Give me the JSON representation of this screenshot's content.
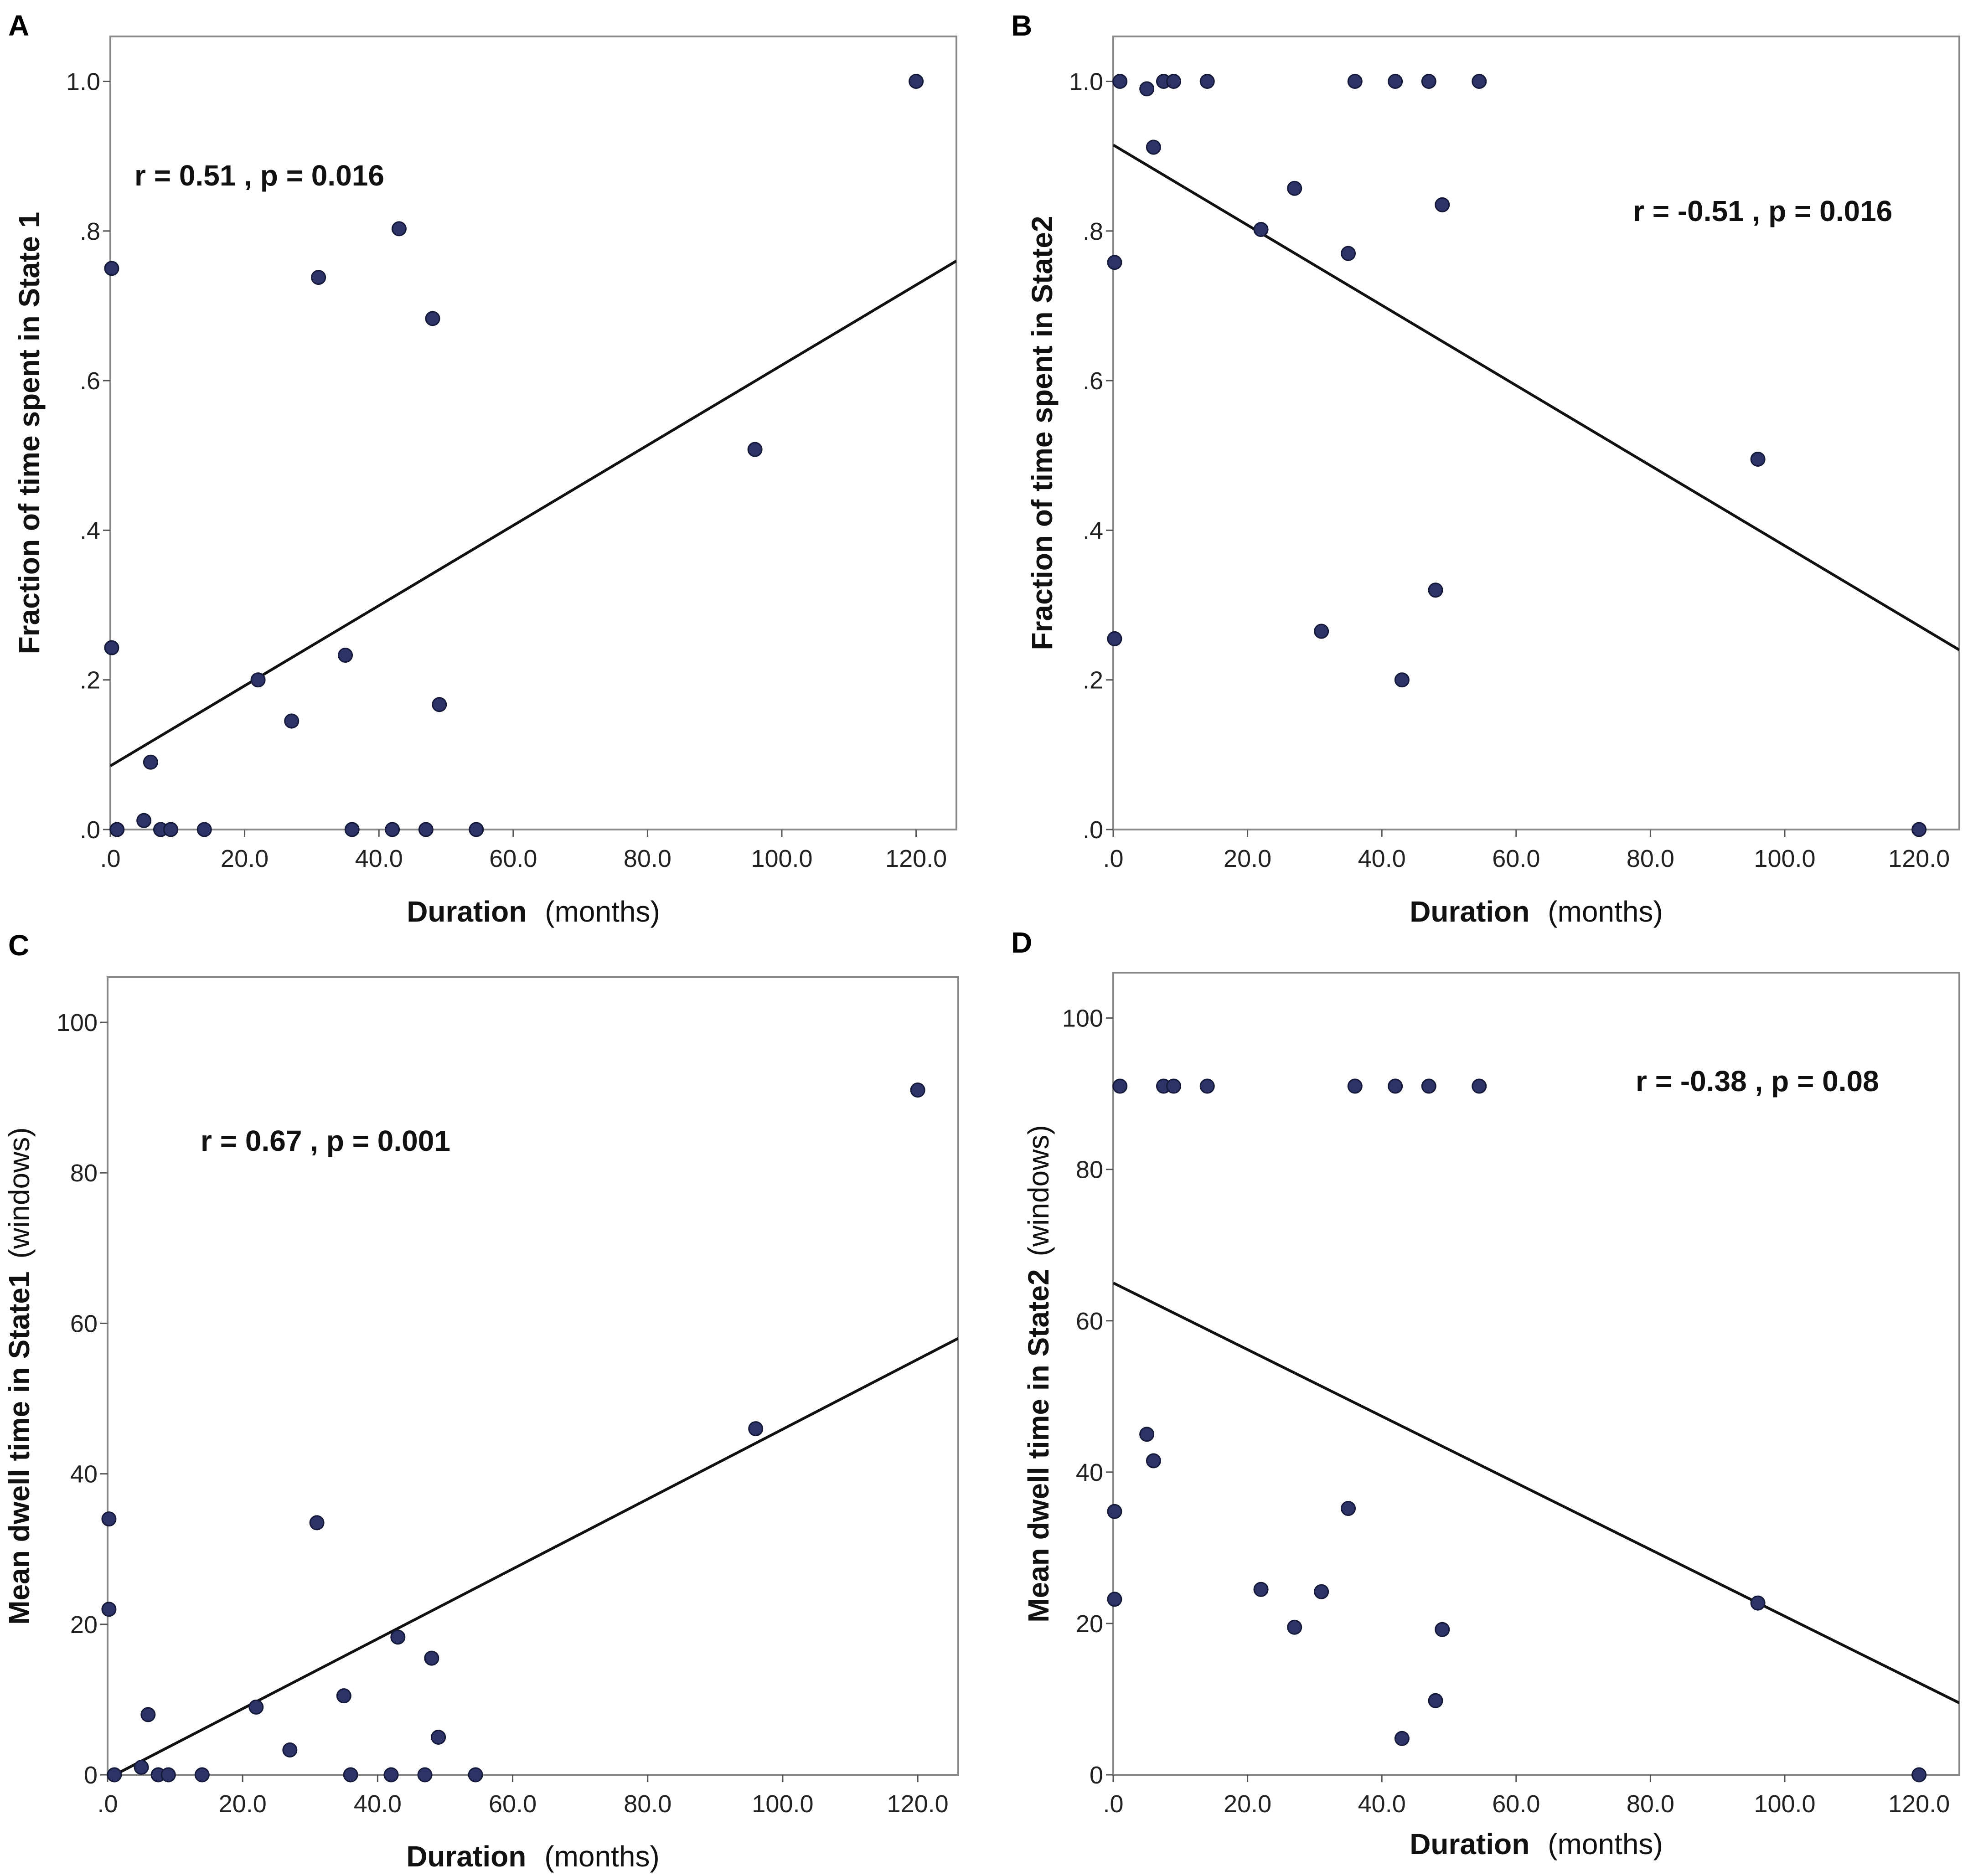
{
  "colors": {
    "points": "#2d3366",
    "point_edge": "#15193a",
    "line": "#111111",
    "frame": "#888888",
    "text": "#111111"
  },
  "chart_data": [
    {
      "panel": "A",
      "type": "scatter",
      "xlabel": {
        "bold": "Duration",
        "plain": "(months)"
      },
      "ylabel": {
        "bold": "Fraction of time spent in State 1",
        "plain": ""
      },
      "xlim": [
        0,
        126
      ],
      "ylim": [
        0,
        1.06
      ],
      "x_ticks": [
        0,
        20,
        40,
        60,
        80,
        100,
        120
      ],
      "x_tick_labels": [
        ".0",
        "20.0",
        "40.0",
        "60.0",
        "80.0",
        "100.0",
        "120.0"
      ],
      "y_ticks": [
        0,
        0.2,
        0.4,
        0.6,
        0.8,
        1.0
      ],
      "y_tick_labels": [
        ".0",
        ".2",
        ".4",
        ".6",
        ".8",
        "1.0"
      ],
      "annotation": "r = 0.51 , p = 0.016",
      "fit_line": {
        "x": [
          0,
          126
        ],
        "y": [
          0.085,
          0.76
        ]
      },
      "points": [
        {
          "x": 0.2,
          "y": 0.75
        },
        {
          "x": 0.2,
          "y": 0.243
        },
        {
          "x": 1,
          "y": 0.0
        },
        {
          "x": 5,
          "y": 0.012
        },
        {
          "x": 6,
          "y": 0.09
        },
        {
          "x": 7.5,
          "y": 0.0
        },
        {
          "x": 9,
          "y": 0.0
        },
        {
          "x": 14,
          "y": 0.0
        },
        {
          "x": 22,
          "y": 0.2
        },
        {
          "x": 27,
          "y": 0.145
        },
        {
          "x": 31,
          "y": 0.738
        },
        {
          "x": 35,
          "y": 0.233
        },
        {
          "x": 36,
          "y": 0.0
        },
        {
          "x": 42,
          "y": 0.0
        },
        {
          "x": 43,
          "y": 0.803
        },
        {
          "x": 47,
          "y": 0.0
        },
        {
          "x": 48,
          "y": 0.683
        },
        {
          "x": 49,
          "y": 0.167
        },
        {
          "x": 54.5,
          "y": 0.0
        },
        {
          "x": 96,
          "y": 0.508
        },
        {
          "x": 120,
          "y": 1.0
        }
      ]
    },
    {
      "panel": "B",
      "type": "scatter",
      "xlabel": {
        "bold": "Duration",
        "plain": "(months)"
      },
      "ylabel": {
        "bold": "Fraction of time spent in State2",
        "plain": ""
      },
      "xlim": [
        0,
        126
      ],
      "ylim": [
        0,
        1.06
      ],
      "x_ticks": [
        0,
        20,
        40,
        60,
        80,
        100,
        120
      ],
      "x_tick_labels": [
        ".0",
        "20.0",
        "40.0",
        "60.0",
        "80.0",
        "100.0",
        "120.0"
      ],
      "y_ticks": [
        0,
        0.2,
        0.4,
        0.6,
        0.8,
        1.0
      ],
      "y_tick_labels": [
        ".0",
        ".2",
        ".4",
        ".6",
        ".8",
        "1.0"
      ],
      "annotation": "r = -0.51 , p = 0.016",
      "fit_line": {
        "x": [
          0,
          126
        ],
        "y": [
          0.915,
          0.24
        ]
      },
      "points": [
        {
          "x": 0.2,
          "y": 0.758
        },
        {
          "x": 0.2,
          "y": 0.255
        },
        {
          "x": 1,
          "y": 1.0
        },
        {
          "x": 5,
          "y": 0.99
        },
        {
          "x": 6,
          "y": 0.912
        },
        {
          "x": 7.5,
          "y": 1.0
        },
        {
          "x": 9,
          "y": 1.0
        },
        {
          "x": 14,
          "y": 1.0
        },
        {
          "x": 22,
          "y": 0.802
        },
        {
          "x": 27,
          "y": 0.857
        },
        {
          "x": 31,
          "y": 0.265
        },
        {
          "x": 35,
          "y": 0.77
        },
        {
          "x": 36,
          "y": 1.0
        },
        {
          "x": 42,
          "y": 1.0
        },
        {
          "x": 43,
          "y": 0.2
        },
        {
          "x": 47,
          "y": 1.0
        },
        {
          "x": 48,
          "y": 0.32
        },
        {
          "x": 49,
          "y": 0.835
        },
        {
          "x": 54.5,
          "y": 1.0
        },
        {
          "x": 96,
          "y": 0.495
        },
        {
          "x": 120,
          "y": 0.0
        }
      ]
    },
    {
      "panel": "C",
      "type": "scatter",
      "xlabel": {
        "bold": "Duration",
        "plain": "(months)"
      },
      "ylabel": {
        "bold": "Mean dwell time in State1",
        "plain": "(windows)"
      },
      "xlim": [
        0,
        126
      ],
      "ylim": [
        0,
        106
      ],
      "x_ticks": [
        0,
        20,
        40,
        60,
        80,
        100,
        120
      ],
      "x_tick_labels": [
        ".0",
        "20.0",
        "40.0",
        "60.0",
        "80.0",
        "100.0",
        "120.0"
      ],
      "y_ticks": [
        0,
        20,
        40,
        60,
        80,
        100
      ],
      "y_tick_labels": [
        "0",
        "20",
        "40",
        "60",
        "80",
        "100"
      ],
      "annotation": "r = 0.67 , p = 0.001",
      "fit_line": {
        "x": [
          0,
          126
        ],
        "y": [
          -0.5,
          58
        ]
      },
      "points": [
        {
          "x": 0.2,
          "y": 34
        },
        {
          "x": 0.2,
          "y": 22
        },
        {
          "x": 1,
          "y": 0
        },
        {
          "x": 5,
          "y": 1
        },
        {
          "x": 6,
          "y": 8
        },
        {
          "x": 7.5,
          "y": 0
        },
        {
          "x": 9,
          "y": 0
        },
        {
          "x": 14,
          "y": 0
        },
        {
          "x": 22,
          "y": 9
        },
        {
          "x": 27,
          "y": 3.3
        },
        {
          "x": 31,
          "y": 33.5
        },
        {
          "x": 35,
          "y": 10.5
        },
        {
          "x": 36,
          "y": 0
        },
        {
          "x": 42,
          "y": 0
        },
        {
          "x": 43,
          "y": 18.3
        },
        {
          "x": 47,
          "y": 0
        },
        {
          "x": 48,
          "y": 15.5
        },
        {
          "x": 49,
          "y": 5
        },
        {
          "x": 54.5,
          "y": 0
        },
        {
          "x": 96,
          "y": 46
        },
        {
          "x": 120,
          "y": 91
        }
      ]
    },
    {
      "panel": "D",
      "type": "scatter",
      "xlabel": {
        "bold": "Duration",
        "plain": "(months)"
      },
      "ylabel": {
        "bold": "Mean dwell time in State2",
        "plain": "(windows)"
      },
      "xlim": [
        0,
        126
      ],
      "ylim": [
        0,
        106
      ],
      "x_ticks": [
        0,
        20,
        40,
        60,
        80,
        100,
        120
      ],
      "x_tick_labels": [
        ".0",
        "20.0",
        "40.0",
        "60.0",
        "80.0",
        "100.0",
        "120.0"
      ],
      "y_ticks": [
        0,
        20,
        40,
        60,
        80,
        100
      ],
      "y_tick_labels": [
        "0",
        "20",
        "40",
        "60",
        "80",
        "100"
      ],
      "annotation": "r = -0.38 , p = 0.08",
      "fit_line": {
        "x": [
          0,
          126
        ],
        "y": [
          65,
          9.5
        ]
      },
      "points": [
        {
          "x": 0.2,
          "y": 34.8
        },
        {
          "x": 0.2,
          "y": 23.2
        },
        {
          "x": 1,
          "y": 91
        },
        {
          "x": 5,
          "y": 45
        },
        {
          "x": 6,
          "y": 41.5
        },
        {
          "x": 7.5,
          "y": 91
        },
        {
          "x": 9,
          "y": 91
        },
        {
          "x": 14,
          "y": 91
        },
        {
          "x": 22,
          "y": 24.5
        },
        {
          "x": 27,
          "y": 19.5
        },
        {
          "x": 31,
          "y": 24.2
        },
        {
          "x": 35,
          "y": 35.2
        },
        {
          "x": 36,
          "y": 91
        },
        {
          "x": 42,
          "y": 91
        },
        {
          "x": 43,
          "y": 4.8
        },
        {
          "x": 47,
          "y": 91
        },
        {
          "x": 48,
          "y": 9.8
        },
        {
          "x": 49,
          "y": 19.2
        },
        {
          "x": 54.5,
          "y": 91
        },
        {
          "x": 96,
          "y": 22.7
        },
        {
          "x": 120,
          "y": 0
        }
      ]
    }
  ]
}
